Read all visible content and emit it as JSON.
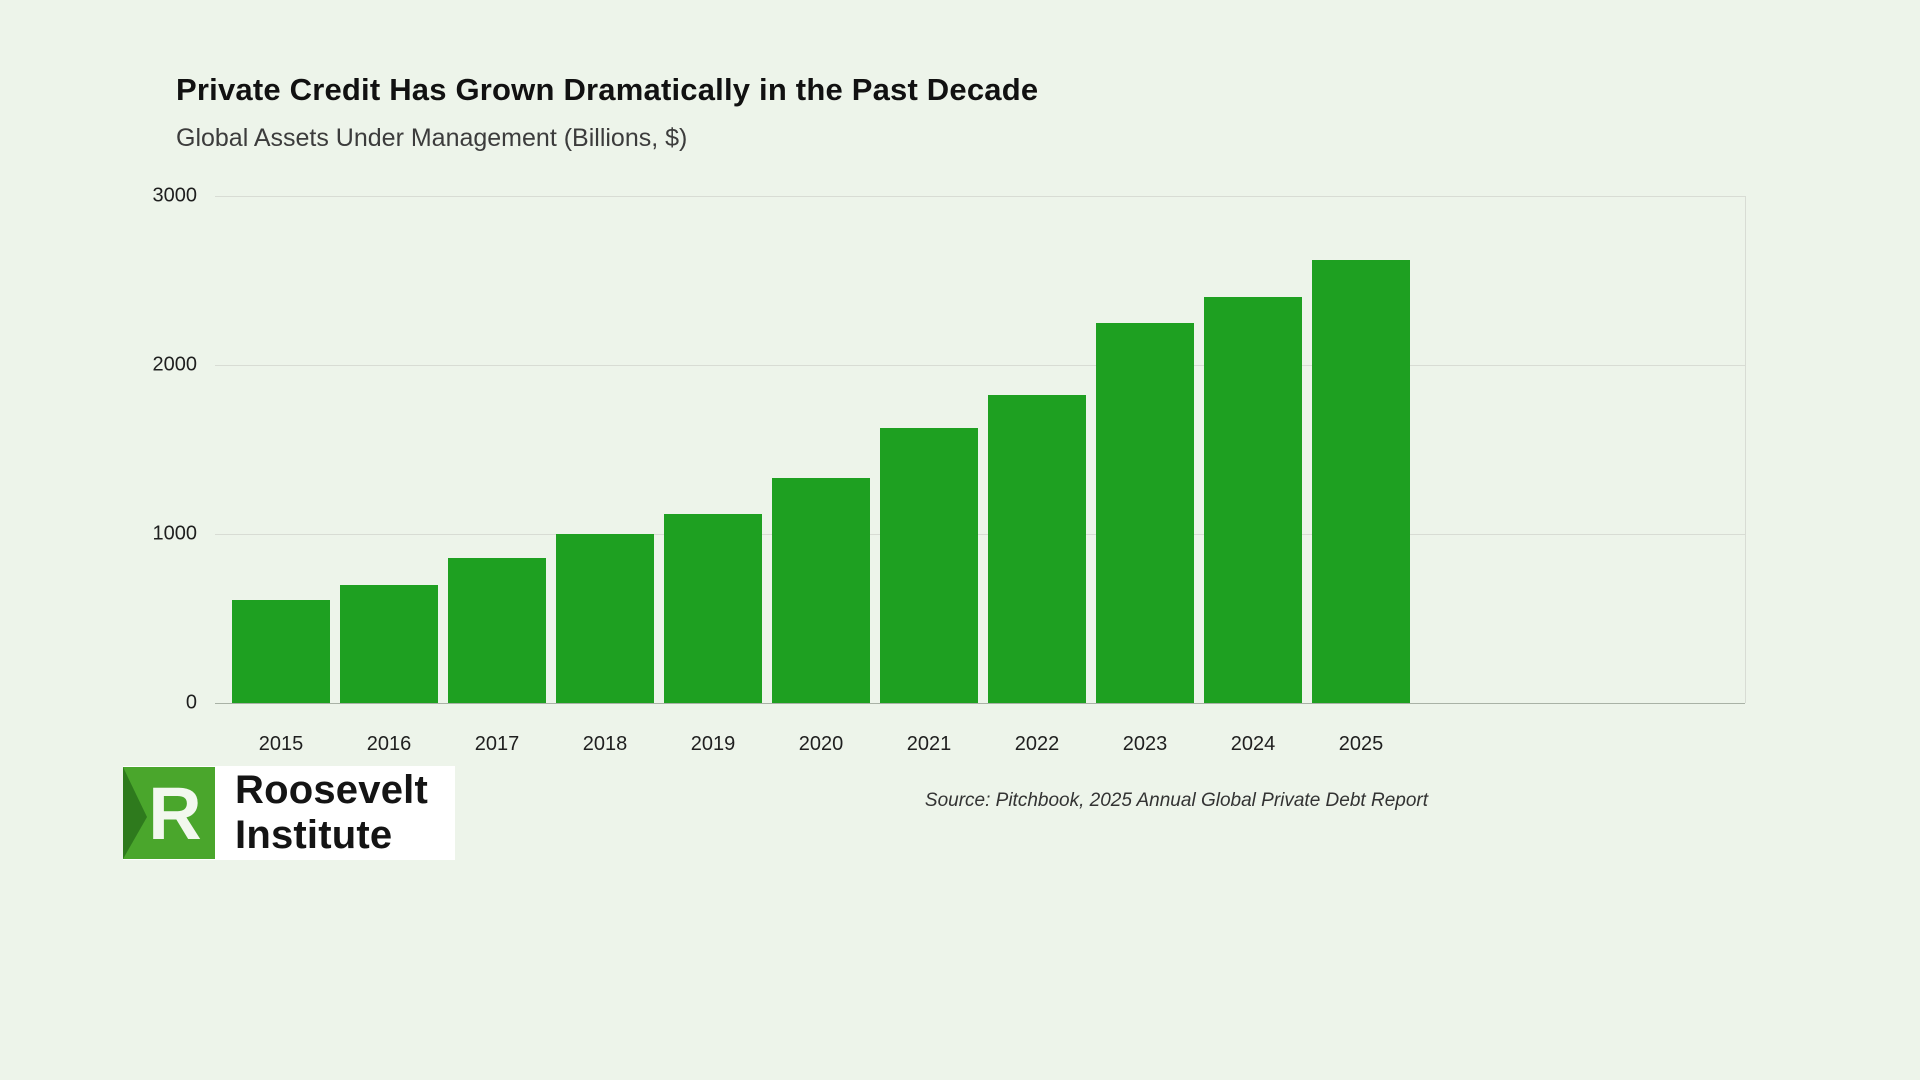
{
  "header": {
    "title": "Private Credit Has Grown Dramatically in the Past Decade",
    "subtitle": "Global Assets Under Management (Billions, $)"
  },
  "chart_data": {
    "type": "bar",
    "categories": [
      "2015",
      "2016",
      "2017",
      "2018",
      "2019",
      "2020",
      "2021",
      "2022",
      "2023",
      "2024",
      "2025"
    ],
    "values": [
      610,
      700,
      860,
      1000,
      1120,
      1330,
      1630,
      1820,
      2250,
      2400,
      2620
    ],
    "title": "Private Credit Has Grown Dramatically in the Past Decade",
    "subtitle": "Global Assets Under Management (Billions, $)",
    "xlabel": "",
    "ylabel": "",
    "ylim": [
      0,
      3000
    ],
    "yticks": [
      0,
      1000,
      2000,
      3000
    ],
    "bar_color": "#1ea021",
    "grid": true,
    "legend": false,
    "background": "#edf4ea"
  },
  "footer": {
    "source": "Source: Pitchbook, 2025 Annual Global Private Debt Report",
    "logo": {
      "letter": "R",
      "line1": "Roosevelt",
      "line2": "Institute",
      "square_color": "#4aa62c",
      "fold_color": "#2e7a1d"
    }
  }
}
